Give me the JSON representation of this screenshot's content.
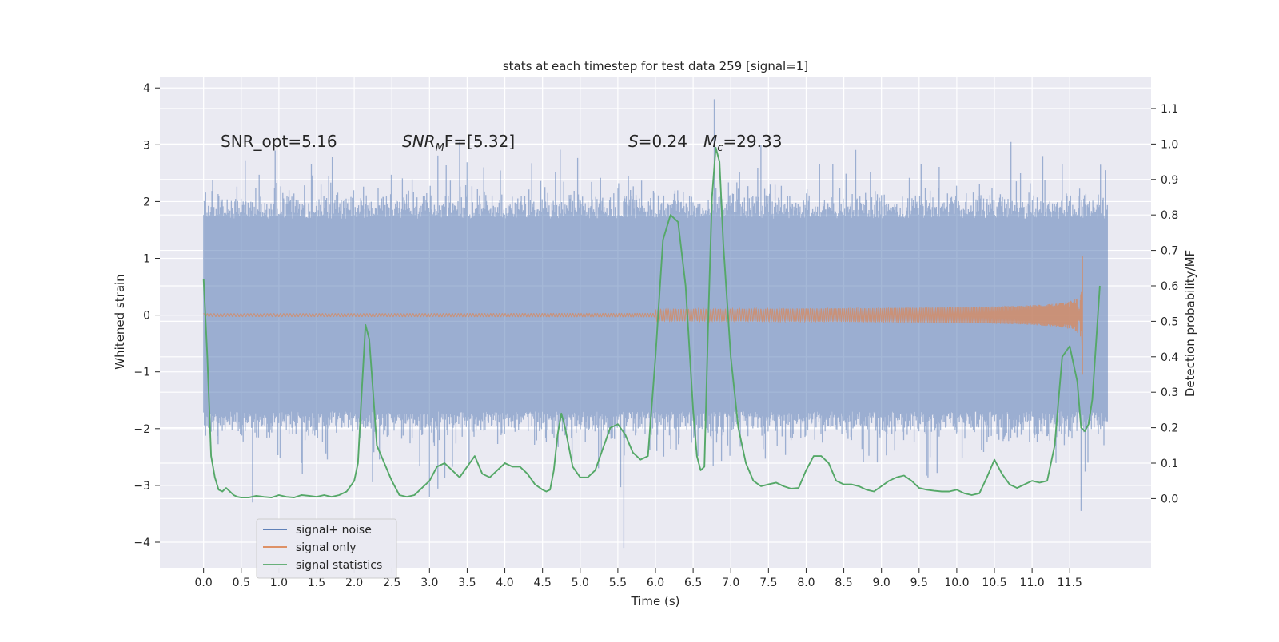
{
  "chart_data": {
    "type": "line",
    "title": "stats at each timestep for test data 259 [signal=1]",
    "xlabel": "Time (s)",
    "ylabel_left": "Whitened strain",
    "ylabel_right": "Detection probability/MF",
    "xlim": [
      -0.58,
      12.58
    ],
    "ylim_left": [
      -4.45,
      4.2
    ],
    "ylim_right": [
      -0.195,
      1.19
    ],
    "x_ticks": [
      "0.0",
      "0.5",
      "1.0",
      "1.5",
      "2.0",
      "2.5",
      "3.0",
      "3.5",
      "4.0",
      "4.5",
      "5.0",
      "5.5",
      "6.0",
      "6.5",
      "7.0",
      "7.5",
      "8.0",
      "8.5",
      "9.0",
      "9.5",
      "10.0",
      "10.5",
      "11.0",
      "11.5"
    ],
    "y_ticks_left": [
      "4",
      "3",
      "2",
      "1",
      "0",
      "−1",
      "−2",
      "−3",
      "−4"
    ],
    "y_ticks_right": [
      "1.1",
      "1.0",
      "0.9",
      "0.8",
      "0.7",
      "0.6",
      "0.5",
      "0.4",
      "0.3",
      "0.2",
      "0.1",
      "0.0"
    ],
    "grid": true,
    "legend_position": "bottom-left",
    "annotations": {
      "snr_opt": "SNR_opt=5.16",
      "snr_mf_sym": "SNR",
      "snr_mf_sub": "M",
      "snr_mf_rest": "F=[5.32]",
      "s_sym": "S",
      "s_rest": "=0.24",
      "mc_sym": "M",
      "mc_sub": "c",
      "mc_rest": "=29.33"
    },
    "series": [
      {
        "name": "signal+ noise",
        "color": "#4c72b0",
        "axis": "left",
        "description_range": [
          0.0,
          12.0
        ],
        "envelope": {
          "typical_band": [
            -1.7,
            1.7
          ],
          "max": 3.8,
          "min": -4.1
        }
      },
      {
        "name": "signal only",
        "color": "#dd8452",
        "axis": "left",
        "chirp_end_time": 11.67,
        "peak_amplitude": 1.05
      },
      {
        "name": "signal statistics",
        "color": "#55a868",
        "axis": "right",
        "x": [
          0.0,
          0.05,
          0.1,
          0.15,
          0.2,
          0.25,
          0.3,
          0.35,
          0.4,
          0.45,
          0.5,
          0.6,
          0.7,
          0.8,
          0.9,
          1.0,
          1.1,
          1.2,
          1.3,
          1.4,
          1.5,
          1.6,
          1.7,
          1.8,
          1.9,
          2.0,
          2.05,
          2.1,
          2.15,
          2.2,
          2.25,
          2.3,
          2.4,
          2.5,
          2.6,
          2.7,
          2.8,
          2.9,
          3.0,
          3.1,
          3.2,
          3.3,
          3.4,
          3.5,
          3.6,
          3.7,
          3.8,
          3.9,
          4.0,
          4.1,
          4.2,
          4.3,
          4.4,
          4.5,
          4.55,
          4.6,
          4.65,
          4.7,
          4.75,
          4.8,
          4.9,
          5.0,
          5.1,
          5.2,
          5.3,
          5.4,
          5.5,
          5.6,
          5.7,
          5.8,
          5.9,
          6.0,
          6.1,
          6.2,
          6.3,
          6.4,
          6.5,
          6.55,
          6.6,
          6.65,
          6.7,
          6.75,
          6.8,
          6.85,
          6.9,
          7.0,
          7.1,
          7.2,
          7.3,
          7.4,
          7.5,
          7.6,
          7.7,
          7.8,
          7.9,
          8.0,
          8.1,
          8.2,
          8.3,
          8.4,
          8.5,
          8.6,
          8.7,
          8.8,
          8.9,
          9.0,
          9.1,
          9.2,
          9.3,
          9.4,
          9.5,
          9.6,
          9.7,
          9.8,
          9.9,
          10.0,
          10.1,
          10.2,
          10.3,
          10.4,
          10.5,
          10.6,
          10.7,
          10.8,
          10.9,
          11.0,
          11.1,
          11.2,
          11.3,
          11.4,
          11.5,
          11.6,
          11.65,
          11.7,
          11.75,
          11.8,
          11.9
        ],
        "y": [
          0.62,
          0.4,
          0.12,
          0.06,
          0.025,
          0.02,
          0.03,
          0.02,
          0.01,
          0.005,
          0.003,
          0.003,
          0.008,
          0.005,
          0.003,
          0.01,
          0.005,
          0.003,
          0.01,
          0.008,
          0.005,
          0.01,
          0.005,
          0.01,
          0.02,
          0.05,
          0.1,
          0.3,
          0.49,
          0.45,
          0.3,
          0.15,
          0.1,
          0.05,
          0.01,
          0.005,
          0.01,
          0.03,
          0.05,
          0.09,
          0.1,
          0.08,
          0.06,
          0.09,
          0.12,
          0.07,
          0.06,
          0.08,
          0.1,
          0.09,
          0.09,
          0.07,
          0.04,
          0.025,
          0.02,
          0.025,
          0.08,
          0.18,
          0.24,
          0.2,
          0.09,
          0.06,
          0.06,
          0.08,
          0.14,
          0.2,
          0.21,
          0.18,
          0.13,
          0.11,
          0.12,
          0.4,
          0.73,
          0.8,
          0.78,
          0.6,
          0.25,
          0.12,
          0.08,
          0.09,
          0.5,
          0.85,
          0.99,
          0.95,
          0.72,
          0.4,
          0.2,
          0.1,
          0.05,
          0.035,
          0.04,
          0.045,
          0.035,
          0.028,
          0.03,
          0.08,
          0.12,
          0.12,
          0.1,
          0.05,
          0.04,
          0.04,
          0.035,
          0.025,
          0.02,
          0.035,
          0.05,
          0.06,
          0.065,
          0.05,
          0.03,
          0.025,
          0.022,
          0.02,
          0.02,
          0.025,
          0.015,
          0.01,
          0.015,
          0.06,
          0.11,
          0.07,
          0.04,
          0.03,
          0.04,
          0.05,
          0.045,
          0.05,
          0.15,
          0.4,
          0.43,
          0.33,
          0.2,
          0.19,
          0.21,
          0.28,
          0.6
        ]
      }
    ]
  }
}
